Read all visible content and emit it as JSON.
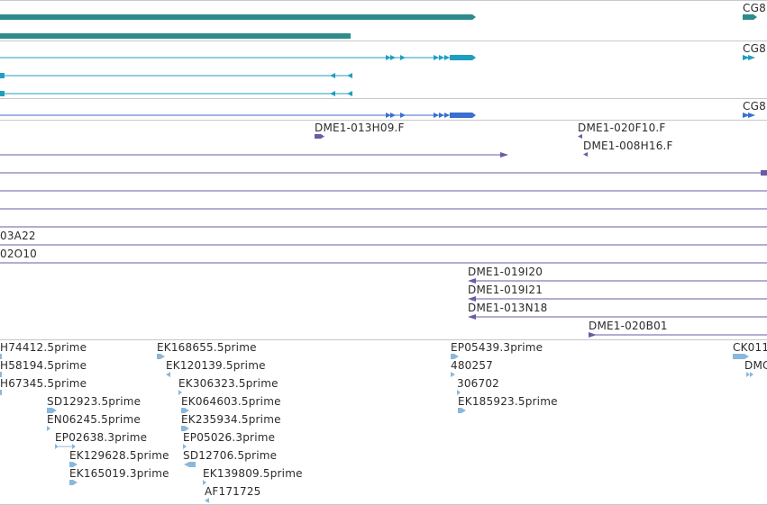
{
  "colors": {
    "teal": "#2e8b8b",
    "cyan": "#1f9fbf",
    "blue": "#3a6fcf",
    "purple": "#6b5aa6",
    "est": "#8ab8dc",
    "separator": "#c8c8c8"
  },
  "gene_tracks": {
    "track1_label": "CG8",
    "track2_label": "CG8",
    "track3_label": "CG8"
  },
  "bac_ends": {
    "top_right_1": "DME1-020F10.F",
    "top_right_2": "DME1-008H16.F",
    "top_left": "DME1-013H09.F",
    "left_1": "03A22",
    "left_2": "02O10",
    "right_1": "DME1-019I20",
    "right_2": "DME1-019I21",
    "right_3": "DME1-013N18",
    "right_4": "DME1-020B01"
  },
  "est_labels": [
    "H74412.5prime",
    "H58194.5prime",
    "H67345.5prime",
    "SD12923.5prime",
    "EN06245.5prime",
    "EP02638.3prime",
    "EK129628.5prime",
    "EK165019.3prime",
    "EK168655.5prime",
    "EK120139.5prime",
    "EK306323.5prime",
    "EK064603.5prime",
    "EK235934.5prime",
    "EP05026.3prime",
    "SD12706.5prime",
    "EK139809.5prime",
    "AF171725",
    "EP05439.3prime",
    "480257",
    "306702",
    "EK185923.5prime",
    "CK011",
    "DMC"
  ]
}
